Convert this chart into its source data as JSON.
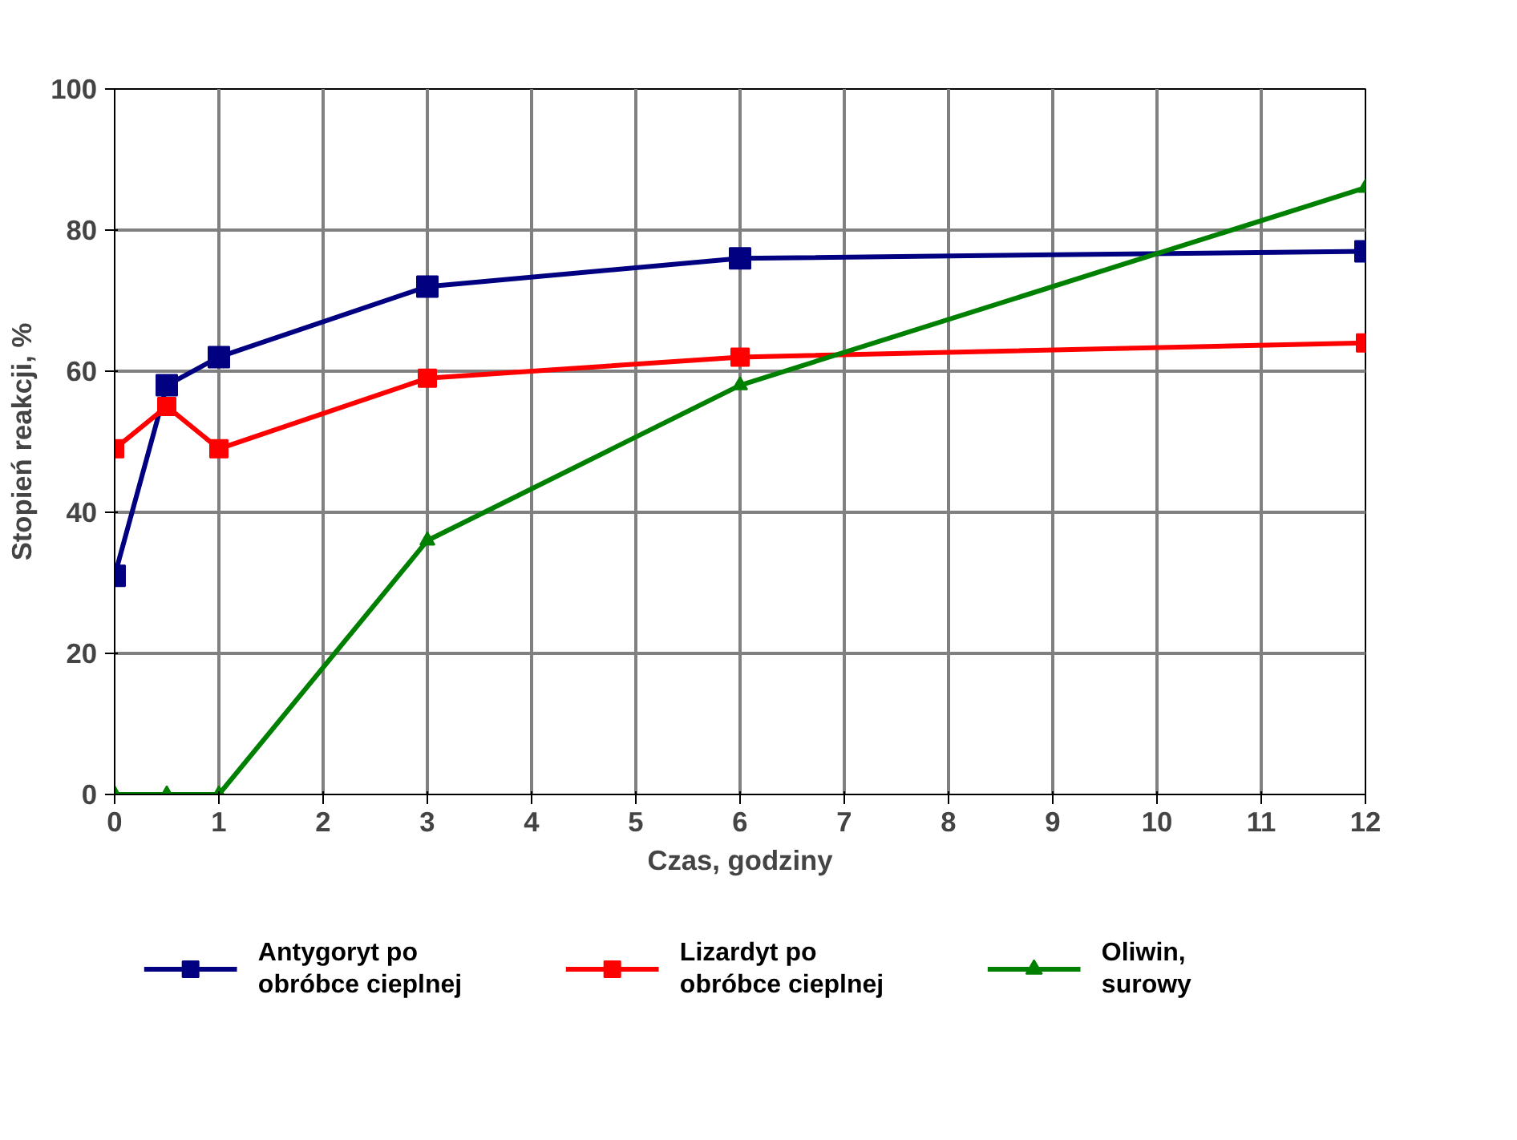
{
  "chart_data": {
    "type": "line",
    "xlabel": "Czas, godziny",
    "ylabel": "Stopień reakcji, %",
    "xlim": [
      0,
      12
    ],
    "xticks": [
      0,
      1,
      2,
      3,
      4,
      5,
      6,
      7,
      8,
      9,
      10,
      11,
      12
    ],
    "ylim": [
      0,
      100
    ],
    "yticks": [
      0,
      20,
      40,
      60,
      80,
      100
    ],
    "grid": true,
    "legend": "bottom",
    "line_style": "solid",
    "series": [
      {
        "name": "Antygoryt po\nobróbce cieplnej",
        "color": "#000080",
        "marker": "square",
        "x": [
          0,
          0.5,
          1,
          3,
          6,
          12
        ],
        "values": [
          31,
          58,
          62,
          72,
          76,
          77
        ]
      },
      {
        "name": "Lizardyt po\nobróbce cieplnej",
        "color": "#ff0000",
        "marker": "square",
        "x": [
          0,
          0.5,
          1,
          3,
          6,
          12
        ],
        "values": [
          49,
          55,
          49,
          59,
          62,
          64
        ]
      },
      {
        "name": "Oliwin,\nsurowy",
        "color": "#008000",
        "marker": "triangle",
        "x": [
          0,
          0.5,
          1,
          3,
          6,
          12
        ],
        "values": [
          0,
          0,
          0,
          36,
          58,
          86
        ]
      }
    ]
  }
}
